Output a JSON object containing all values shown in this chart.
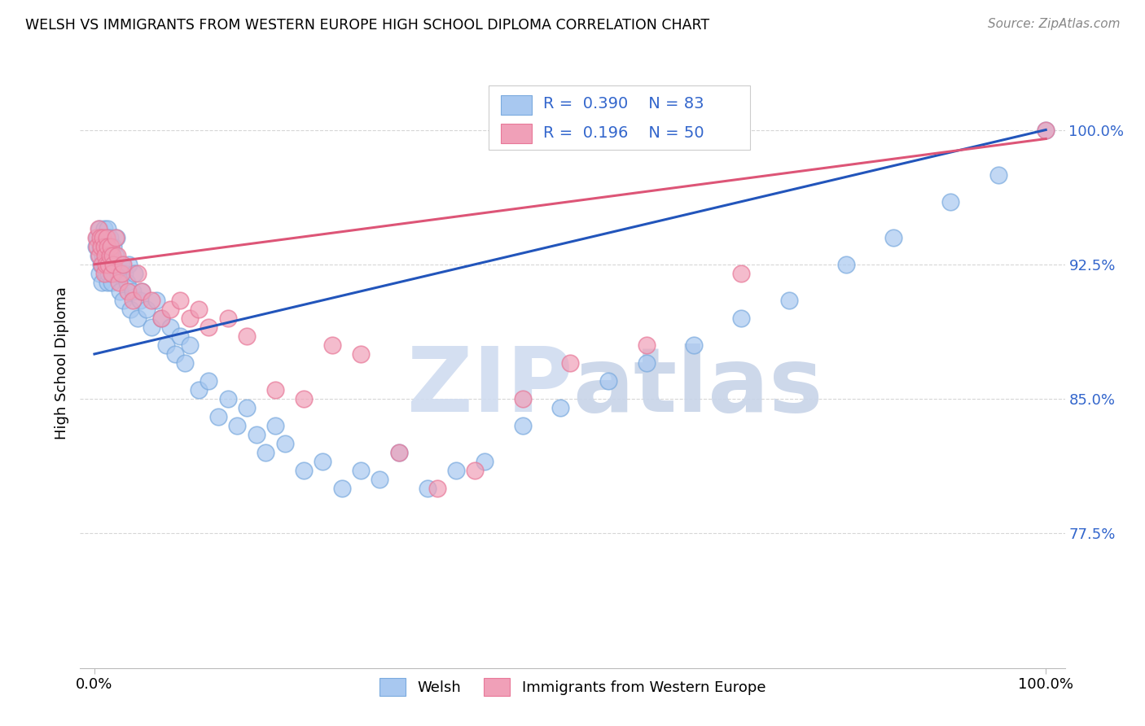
{
  "title": "WELSH VS IMMIGRANTS FROM WESTERN EUROPE HIGH SCHOOL DIPLOMA CORRELATION CHART",
  "source": "Source: ZipAtlas.com",
  "ylabel": "High School Diploma",
  "blue_color": "#A8C8F0",
  "pink_color": "#F0A0B8",
  "blue_edge_color": "#7AAADE",
  "pink_edge_color": "#E87898",
  "blue_line_color": "#2255BB",
  "pink_line_color": "#DD5577",
  "legend_text_color": "#3366CC",
  "watermark_color": "#D0DCF0",
  "ytick_color": "#3366CC",
  "welsh_x": [
    0.002,
    0.003,
    0.004,
    0.005,
    0.005,
    0.006,
    0.007,
    0.007,
    0.008,
    0.009,
    0.01,
    0.01,
    0.011,
    0.012,
    0.012,
    0.013,
    0.014,
    0.014,
    0.015,
    0.016,
    0.016,
    0.017,
    0.018,
    0.018,
    0.019,
    0.02,
    0.021,
    0.022,
    0.023,
    0.025,
    0.027,
    0.028,
    0.03,
    0.032,
    0.034,
    0.036,
    0.038,
    0.04,
    0.042,
    0.045,
    0.048,
    0.05,
    0.055,
    0.06,
    0.065,
    0.07,
    0.075,
    0.08,
    0.085,
    0.09,
    0.095,
    0.1,
    0.11,
    0.12,
    0.13,
    0.14,
    0.15,
    0.16,
    0.17,
    0.18,
    0.19,
    0.2,
    0.22,
    0.24,
    0.26,
    0.28,
    0.3,
    0.32,
    0.35,
    0.38,
    0.41,
    0.45,
    0.49,
    0.54,
    0.58,
    0.63,
    0.68,
    0.73,
    0.79,
    0.84,
    0.9,
    0.95,
    1.0
  ],
  "welsh_y": [
    0.935,
    0.94,
    0.93,
    0.945,
    0.92,
    0.935,
    0.925,
    0.94,
    0.915,
    0.93,
    0.945,
    0.925,
    0.935,
    0.92,
    0.94,
    0.93,
    0.915,
    0.945,
    0.92,
    0.935,
    0.94,
    0.925,
    0.93,
    0.915,
    0.92,
    0.935,
    0.925,
    0.93,
    0.94,
    0.92,
    0.91,
    0.925,
    0.905,
    0.92,
    0.915,
    0.925,
    0.9,
    0.91,
    0.92,
    0.895,
    0.905,
    0.91,
    0.9,
    0.89,
    0.905,
    0.895,
    0.88,
    0.89,
    0.875,
    0.885,
    0.87,
    0.88,
    0.855,
    0.86,
    0.84,
    0.85,
    0.835,
    0.845,
    0.83,
    0.82,
    0.835,
    0.825,
    0.81,
    0.815,
    0.8,
    0.81,
    0.805,
    0.82,
    0.8,
    0.81,
    0.815,
    0.835,
    0.845,
    0.86,
    0.87,
    0.88,
    0.895,
    0.905,
    0.925,
    0.94,
    0.96,
    0.975,
    1.0
  ],
  "immig_x": [
    0.002,
    0.003,
    0.004,
    0.005,
    0.006,
    0.007,
    0.008,
    0.009,
    0.01,
    0.01,
    0.011,
    0.012,
    0.013,
    0.014,
    0.015,
    0.016,
    0.017,
    0.018,
    0.019,
    0.02,
    0.022,
    0.024,
    0.026,
    0.028,
    0.03,
    0.035,
    0.04,
    0.045,
    0.05,
    0.06,
    0.07,
    0.08,
    0.09,
    0.1,
    0.11,
    0.12,
    0.14,
    0.16,
    0.19,
    0.22,
    0.25,
    0.28,
    0.32,
    0.36,
    0.4,
    0.45,
    0.5,
    0.58,
    0.68,
    1.0
  ],
  "immig_y": [
    0.94,
    0.935,
    0.945,
    0.93,
    0.94,
    0.935,
    0.925,
    0.94,
    0.935,
    0.92,
    0.93,
    0.925,
    0.94,
    0.935,
    0.925,
    0.93,
    0.935,
    0.92,
    0.93,
    0.925,
    0.94,
    0.93,
    0.915,
    0.92,
    0.925,
    0.91,
    0.905,
    0.92,
    0.91,
    0.905,
    0.895,
    0.9,
    0.905,
    0.895,
    0.9,
    0.89,
    0.895,
    0.885,
    0.855,
    0.85,
    0.88,
    0.875,
    0.82,
    0.8,
    0.81,
    0.85,
    0.87,
    0.88,
    0.92,
    1.0
  ],
  "blue_trend": [
    0.0,
    1.0,
    0.875,
    1.0
  ],
  "pink_trend": [
    0.0,
    1.0,
    0.925,
    0.995
  ],
  "ytick_vals": [
    0.775,
    0.85,
    0.925,
    1.0
  ],
  "ytick_labels": [
    "77.5%",
    "85.0%",
    "92.5%",
    "100.0%"
  ],
  "xlim": [
    -0.015,
    1.02
  ],
  "ylim": [
    0.7,
    1.04
  ]
}
